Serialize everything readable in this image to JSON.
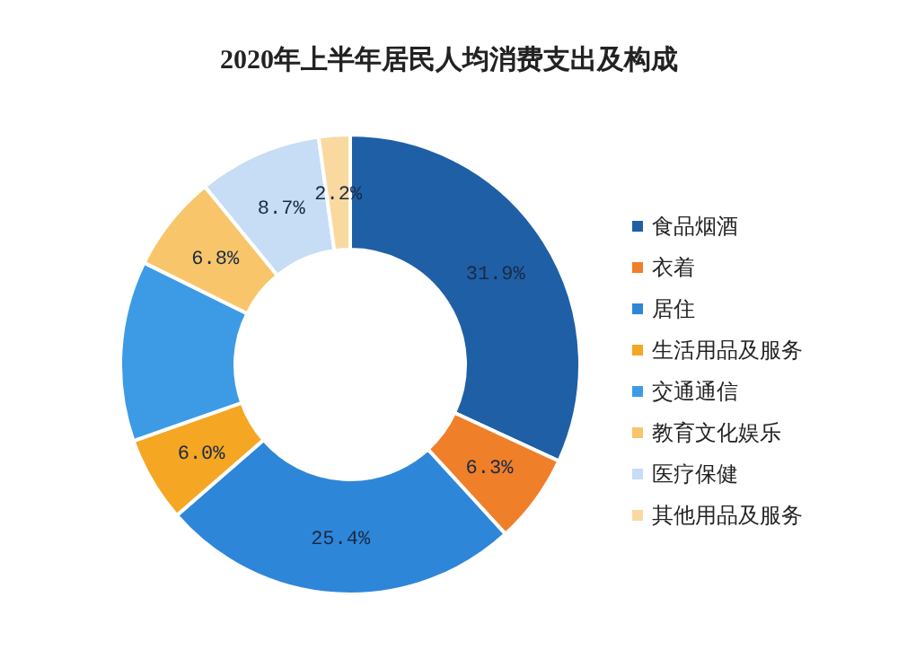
{
  "chart_data": {
    "type": "donut",
    "title": "2020年上半年居民人均消费支出及构成",
    "categories": [
      "食品烟酒",
      "衣着",
      "居住",
      "生活用品及服务",
      "交通通信",
      "教育文化娱乐",
      "医疗保健",
      "其他用品及服务"
    ],
    "values": [
      31.9,
      6.3,
      25.4,
      6.0,
      12.7,
      6.8,
      8.7,
      2.2
    ],
    "colors": [
      "#1f5fa6",
      "#f07f2a",
      "#2e86d9",
      "#f5a623",
      "#3d9be6",
      "#f8c56a",
      "#c6ddf5",
      "#fad9a1"
    ],
    "value_labels": [
      "31.9%",
      "6.3%",
      "25.4%",
      "6.0%",
      null,
      "6.8%",
      "8.7%",
      "2.2%"
    ],
    "legend": "right"
  }
}
